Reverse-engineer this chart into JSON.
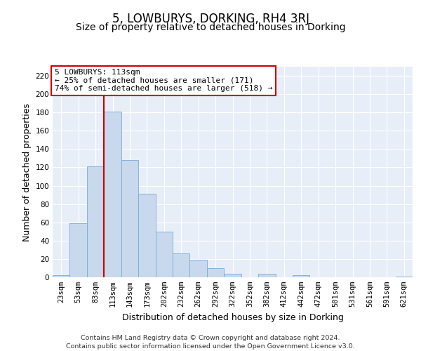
{
  "title": "5, LOWBURYS, DORKING, RH4 3RJ",
  "subtitle": "Size of property relative to detached houses in Dorking",
  "xlabel": "Distribution of detached houses by size in Dorking",
  "ylabel": "Number of detached properties",
  "bar_labels": [
    "23sqm",
    "53sqm",
    "83sqm",
    "113sqm",
    "143sqm",
    "173sqm",
    "202sqm",
    "232sqm",
    "262sqm",
    "292sqm",
    "322sqm",
    "352sqm",
    "382sqm",
    "412sqm",
    "442sqm",
    "472sqm",
    "501sqm",
    "531sqm",
    "561sqm",
    "591sqm",
    "621sqm"
  ],
  "bar_values": [
    2,
    59,
    121,
    181,
    128,
    91,
    50,
    26,
    19,
    10,
    4,
    0,
    4,
    0,
    2,
    0,
    0,
    0,
    0,
    0,
    1
  ],
  "bar_color": "#c8d9ee",
  "bar_edge_color": "#7aabcf",
  "vline_x_idx": 3,
  "vline_color": "#cc0000",
  "ylim": [
    0,
    230
  ],
  "yticks": [
    0,
    20,
    40,
    60,
    80,
    100,
    120,
    140,
    160,
    180,
    200,
    220
  ],
  "annotation_title": "5 LOWBURYS: 113sqm",
  "annotation_line1": "← 25% of detached houses are smaller (171)",
  "annotation_line2": "74% of semi-detached houses are larger (518) →",
  "annotation_box_facecolor": "#ffffff",
  "annotation_box_edgecolor": "#cc0000",
  "footer_line1": "Contains HM Land Registry data © Crown copyright and database right 2024.",
  "footer_line2": "Contains public sector information licensed under the Open Government Licence v3.0.",
  "background_color": "#e8eef8",
  "grid_color": "#ffffff",
  "title_fontsize": 12,
  "subtitle_fontsize": 10,
  "axis_label_fontsize": 9,
  "tick_fontsize": 7.5,
  "footer_fontsize": 6.8,
  "annotation_fontsize": 8
}
